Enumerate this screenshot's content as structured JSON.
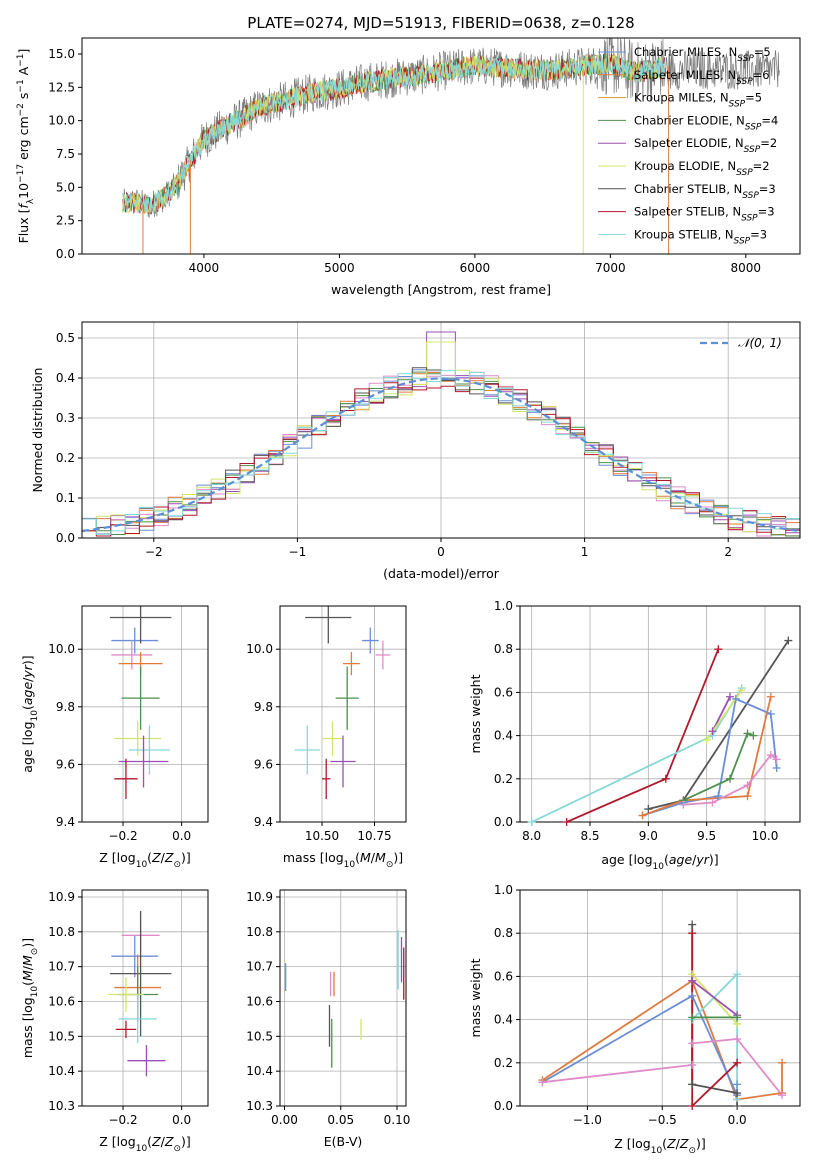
{
  "figure": {
    "title": "PLATE=0274, MJD=51913, FIBERID=0638, z=0.128"
  },
  "colors": {
    "chabrier_miles": "#6b8fd6",
    "salpeter_miles": "#e07b3f",
    "kroupa_miles": "#d7942c",
    "chabrier_elodie": "#4f8f4f",
    "salpeter_elodie": "#9b4fb4",
    "kroupa_elodie": "#d4e46a",
    "chabrier_stelib": "#555555",
    "salpeter_stelib": "#b2182b",
    "kroupa_stelib": "#86d8d8",
    "pink": "#e08cc8",
    "gauss": "#5b8fd6",
    "grid": "#b0b0b0"
  },
  "chart_data": [
    {
      "id": "spectrum",
      "type": "line",
      "xlabel": "wavelength [Angstrom, rest frame]",
      "ylabel": "Flux [f_λ10^-17 erg cm^-2 s^-1 A^-1]",
      "xlim": [
        3100,
        8400
      ],
      "ylim": [
        0,
        16.2
      ],
      "xticks": [
        4000,
        5000,
        6000,
        7000,
        8000
      ],
      "yticks": [
        0.0,
        2.5,
        5.0,
        7.5,
        10.0,
        12.5,
        15.0
      ],
      "grid": false,
      "legend_position": "top-right",
      "continuum": {
        "x": [
          3400,
          3500,
          3600,
          3700,
          3800,
          3900,
          4000,
          4100,
          4200,
          4300,
          4400,
          4600,
          4800,
          5000,
          5200,
          5400,
          5600,
          5800,
          6000,
          6200,
          6400,
          6600,
          6800,
          7000,
          7200,
          7400
        ],
        "y": [
          3.8,
          3.9,
          3.6,
          4.2,
          5.2,
          7.0,
          8.6,
          9.2,
          9.8,
          10.3,
          11.0,
          11.5,
          12.1,
          12.4,
          12.9,
          13.2,
          13.4,
          13.8,
          14.1,
          14.0,
          13.8,
          13.8,
          14.1,
          14.3,
          13.6,
          14.0
        ]
      },
      "series": [
        {
          "name": "Chabrier MILES",
          "nssp": 5
        },
        {
          "name": "Salpeter MILES",
          "nssp": 6
        },
        {
          "name": "Kroupa MILES",
          "nssp": 5
        },
        {
          "name": "Chabrier ELODIE",
          "nssp": 4
        },
        {
          "name": "Salpeter ELODIE",
          "nssp": 2
        },
        {
          "name": "Kroupa ELODIE",
          "nssp": 2
        },
        {
          "name": "Chabrier STELIB",
          "nssp": 3
        },
        {
          "name": "Salpeter STELIB",
          "nssp": 3
        },
        {
          "name": "Kroupa STELIB",
          "nssp": 3
        }
      ]
    },
    {
      "id": "residuals",
      "type": "line",
      "xlabel": "(data-model)/error",
      "ylabel": "Normed distribution",
      "xlim": [
        -2.5,
        2.5
      ],
      "ylim": [
        0,
        0.54
      ],
      "xticks": [
        -2,
        -1,
        0,
        1,
        2
      ],
      "yticks": [
        0.0,
        0.1,
        0.2,
        0.3,
        0.4,
        0.5
      ],
      "grid": true,
      "legend": "𝒩(0, 1)",
      "legend_position": "top-right"
    },
    {
      "id": "age_vs_Z",
      "type": "scatter",
      "xlabel": "Z [log10(Z/Z⊙)]",
      "ylabel": "age  [log10(age/yr)]",
      "xlim": [
        -0.34,
        0.09
      ],
      "ylim": [
        9.4,
        10.15
      ],
      "xticks": [
        -0.2,
        0.0
      ],
      "yticks": [
        9.4,
        9.6,
        9.8,
        10.0
      ],
      "grid": true,
      "points": [
        {
          "x": -0.16,
          "y": 10.03,
          "dx": 0.16,
          "dy": 0.09
        },
        {
          "x": -0.17,
          "y": 9.98,
          "dx": 0.14,
          "dy": 0.1
        },
        {
          "x": -0.14,
          "y": 9.95,
          "dx": 0.15,
          "dy": 0.08
        },
        {
          "x": -0.14,
          "y": 10.11,
          "dx": 0.21,
          "dy": 0.18
        },
        {
          "x": -0.14,
          "y": 9.83,
          "dx": 0.13,
          "dy": 0.22
        },
        {
          "x": -0.15,
          "y": 9.69,
          "dx": 0.16,
          "dy": 0.12
        },
        {
          "x": -0.11,
          "y": 9.65,
          "dx": 0.14,
          "dy": 0.17
        },
        {
          "x": -0.13,
          "y": 9.61,
          "dx": 0.17,
          "dy": 0.18
        },
        {
          "x": -0.19,
          "y": 9.55,
          "dx": 0.08,
          "dy": 0.14
        }
      ]
    },
    {
      "id": "age_vs_mass",
      "type": "scatter",
      "xlabel": "mass [log10(M/M⊙)]",
      "ylabel": "",
      "xlim": [
        10.3,
        10.9
      ],
      "ylim": [
        9.4,
        10.15
      ],
      "xticks": [
        10.5,
        10.75
      ],
      "yticks": [
        9.4,
        9.6,
        9.8,
        10.0
      ],
      "grid": true,
      "points": [
        {
          "x": 10.73,
          "y": 10.03,
          "dx": 0.08,
          "dy": 0.09
        },
        {
          "x": 10.79,
          "y": 9.98,
          "dx": 0.07,
          "dy": 0.1
        },
        {
          "x": 10.64,
          "y": 9.95,
          "dx": 0.08,
          "dy": 0.08
        },
        {
          "x": 10.53,
          "y": 10.11,
          "dx": 0.22,
          "dy": 0.18
        },
        {
          "x": 10.62,
          "y": 9.83,
          "dx": 0.11,
          "dy": 0.22
        },
        {
          "x": 10.55,
          "y": 9.69,
          "dx": 0.09,
          "dy": 0.12
        },
        {
          "x": 10.43,
          "y": 9.65,
          "dx": 0.12,
          "dy": 0.17
        },
        {
          "x": 10.6,
          "y": 9.61,
          "dx": 0.12,
          "dy": 0.18
        },
        {
          "x": 10.52,
          "y": 9.55,
          "dx": 0.04,
          "dy": 0.14
        }
      ]
    },
    {
      "id": "weight_vs_age",
      "type": "line",
      "xlabel": "age  [log10(age/yr)]",
      "ylabel": "mass weight",
      "xlim": [
        7.9,
        10.3
      ],
      "ylim": [
        0,
        1.0
      ],
      "xticks": [
        8.0,
        8.5,
        9.0,
        9.5,
        10.0
      ],
      "yticks": [
        0.0,
        0.2,
        0.4,
        0.6,
        0.8,
        1.0
      ],
      "grid": true,
      "series": [
        {
          "color_key": "salpeter_stelib",
          "x": [
            8.3,
            9.15,
            9.6
          ],
          "y": [
            0.0,
            0.2,
            0.8
          ]
        },
        {
          "color_key": "kroupa_stelib",
          "x": [
            8.0,
            9.55,
            9.8
          ],
          "y": [
            0.0,
            0.4,
            0.62
          ]
        },
        {
          "color_key": "chabrier_stelib",
          "x": [
            9.0,
            9.3,
            10.2
          ],
          "y": [
            0.06,
            0.1,
            0.84
          ]
        },
        {
          "color_key": "chabrier_miles",
          "x": [
            8.95,
            9.3,
            9.6,
            9.75,
            10.05,
            10.1
          ],
          "y": [
            0.03,
            0.09,
            0.12,
            0.57,
            0.5,
            0.25
          ]
        },
        {
          "color_key": "salpeter_miles",
          "x": [
            8.95,
            9.3,
            9.85,
            10.05
          ],
          "y": [
            0.03,
            0.1,
            0.12,
            0.58
          ]
        },
        {
          "color_key": "chabrier_elodie",
          "x": [
            9.3,
            9.7,
            9.85,
            9.9
          ],
          "y": [
            0.1,
            0.2,
            0.41,
            0.4
          ]
        },
        {
          "color_key": "salpeter_elodie",
          "x": [
            9.55,
            9.7
          ],
          "y": [
            0.42,
            0.58
          ]
        },
        {
          "color_key": "kroupa_elodie",
          "x": [
            9.5,
            9.8
          ],
          "y": [
            0.38,
            0.61
          ]
        },
        {
          "color_key": "pink",
          "x": [
            9.3,
            9.55,
            9.85,
            10.05,
            10.1
          ],
          "y": [
            0.08,
            0.09,
            0.17,
            0.31,
            0.29
          ]
        }
      ]
    },
    {
      "id": "mass_vs_Z",
      "type": "scatter",
      "xlabel": "Z [log10(Z/Z⊙)]",
      "ylabel": "mass [log10(M/M⊙)]",
      "xlim": [
        -0.34,
        0.09
      ],
      "ylim": [
        10.3,
        10.92
      ],
      "xticks": [
        -0.2,
        0.0
      ],
      "yticks": [
        10.3,
        10.4,
        10.5,
        10.6,
        10.7,
        10.8,
        10.9
      ],
      "grid": true,
      "points": [
        {
          "x": -0.16,
          "y": 10.73,
          "dx": 0.16,
          "dy": 0.12
        },
        {
          "x": -0.14,
          "y": 10.79,
          "dx": 0.13,
          "dy": 0.09
        },
        {
          "x": -0.15,
          "y": 10.64,
          "dx": 0.16,
          "dy": 0.19
        },
        {
          "x": -0.14,
          "y": 10.68,
          "dx": 0.21,
          "dy": 0.36
        },
        {
          "x": -0.15,
          "y": 10.62,
          "dx": 0.14,
          "dy": 0.16
        },
        {
          "x": -0.19,
          "y": 10.62,
          "dx": 0.12,
          "dy": 0.1
        },
        {
          "x": -0.15,
          "y": 10.55,
          "dx": 0.13,
          "dy": 0.14
        },
        {
          "x": -0.12,
          "y": 10.43,
          "dx": 0.13,
          "dy": 0.09
        },
        {
          "x": -0.19,
          "y": 10.52,
          "dx": 0.07,
          "dy": 0.05
        }
      ]
    },
    {
      "id": "mass_vs_ebv",
      "type": "scatter",
      "xlabel": "E(B-V)",
      "ylabel": "",
      "xlim": [
        -0.004,
        0.108
      ],
      "ylim": [
        10.3,
        10.92
      ],
      "xticks": [
        0.0,
        0.05,
        0.1
      ],
      "yticks": [
        10.3,
        10.4,
        10.5,
        10.6,
        10.7,
        10.8,
        10.9
      ],
      "grid": true,
      "points": [
        {
          "x": 0.001,
          "y": 10.67,
          "dy": 0.08
        },
        {
          "x": 0.041,
          "y": 10.65,
          "dy": 0.07
        },
        {
          "x": 0.044,
          "y": 10.65,
          "dy": 0.07
        },
        {
          "x": 0.04,
          "y": 10.53,
          "dy": 0.12
        },
        {
          "x": 0.042,
          "y": 10.48,
          "dy": 0.14
        },
        {
          "x": 0.068,
          "y": 10.52,
          "dy": 0.06
        },
        {
          "x": 0.101,
          "y": 10.72,
          "dy": 0.17
        },
        {
          "x": 0.104,
          "y": 10.72,
          "dy": 0.13
        },
        {
          "x": 0.106,
          "y": 10.68,
          "dy": 0.15
        }
      ]
    },
    {
      "id": "weight_vs_Z",
      "type": "line",
      "xlabel": "Z [log10(Z/Z⊙)]",
      "ylabel": "mass weight",
      "xlim": [
        -1.45,
        0.42
      ],
      "ylim": [
        0,
        1.0
      ],
      "xticks": [
        -1.0,
        -0.5,
        0.0
      ],
      "yticks": [
        0.0,
        0.2,
        0.4,
        0.6,
        0.8,
        1.0
      ],
      "grid": true,
      "series": [
        {
          "color_key": "salpeter_miles",
          "x": [
            -1.3,
            -0.3,
            0.0,
            0.3,
            0.3
          ],
          "y": [
            0.12,
            0.58,
            0.03,
            0.06,
            0.2
          ]
        },
        {
          "color_key": "chabrier_miles",
          "x": [
            -1.3,
            -0.3,
            0.0,
            0.0
          ],
          "y": [
            0.11,
            0.51,
            0.05,
            0.1
          ]
        },
        {
          "color_key": "pink",
          "x": [
            -1.3,
            -0.3,
            -0.3,
            0.0,
            0.3
          ],
          "y": [
            0.11,
            0.19,
            0.29,
            0.31,
            0.05
          ]
        },
        {
          "color_key": "kroupa_stelib",
          "x": [
            -0.3,
            0.0,
            0.0
          ],
          "y": [
            0.4,
            0.61,
            0.03
          ]
        },
        {
          "color_key": "kroupa_elodie",
          "x": [
            -0.3,
            0.0
          ],
          "y": [
            0.61,
            0.38
          ]
        },
        {
          "color_key": "salpeter_elodie",
          "x": [
            -0.3,
            0.0
          ],
          "y": [
            0.58,
            0.42
          ]
        },
        {
          "color_key": "chabrier_elodie",
          "x": [
            -0.3,
            -0.3,
            0.0
          ],
          "y": [
            0.1,
            0.41,
            0.41
          ]
        },
        {
          "color_key": "chabrier_stelib",
          "x": [
            -0.3,
            -0.3,
            0.0,
            0.0
          ],
          "y": [
            0.84,
            0.1,
            0.06,
            0.0
          ]
        },
        {
          "color_key": "salpeter_stelib",
          "x": [
            -0.3,
            -0.3,
            0.0
          ],
          "y": [
            0.8,
            0.0,
            0.2
          ]
        }
      ]
    }
  ]
}
